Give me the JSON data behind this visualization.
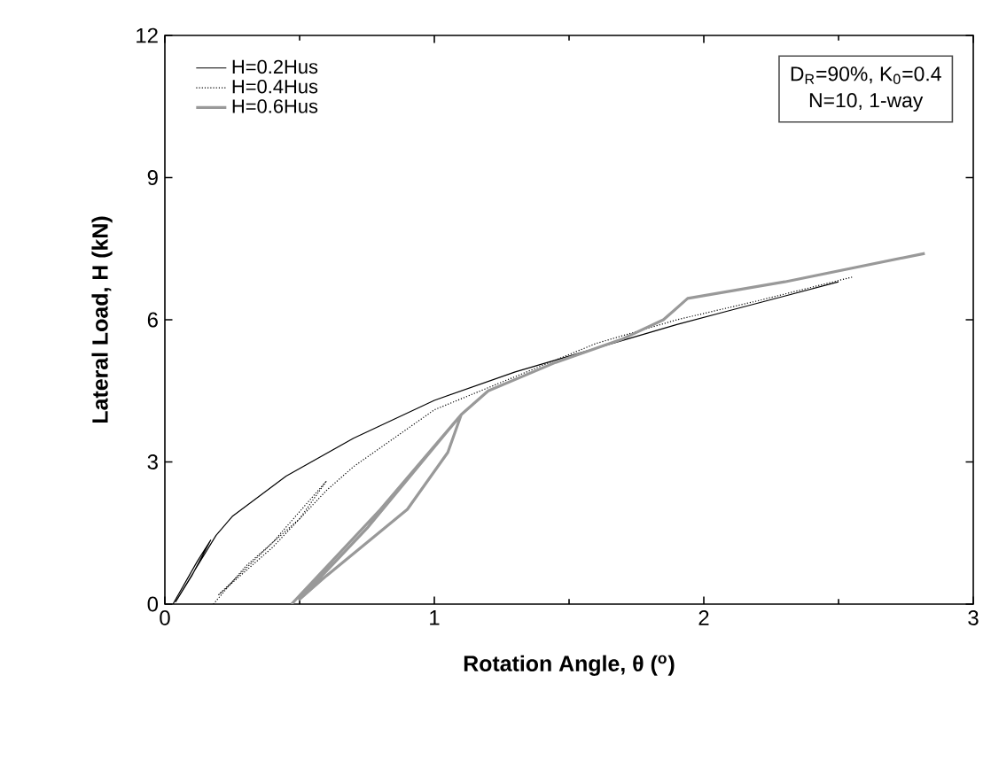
{
  "chart_data": {
    "type": "line",
    "xlabel": "Rotation Angle, θ ($^{o}$)",
    "ylabel": "Lateral Load, H (kN)",
    "xlim": [
      0,
      3
    ],
    "xticks": [
      0,
      1,
      2,
      3
    ],
    "ylim": [
      0,
      12
    ],
    "yticks": [
      0,
      3,
      6,
      9,
      12
    ],
    "grid": false,
    "legend": "top left",
    "annotations": [
      "D$_{R}$=90%, K$_{0}$=0.4",
      "N=10, 1-way"
    ],
    "series": [
      {
        "name": "H=0.2Hus",
        "color": "#000000",
        "line_style": "solid",
        "x": [
          0.03,
          0.12,
          0.17,
          0.1,
          0.04,
          0.12,
          0.19,
          0.25,
          0.45,
          0.7,
          1.0,
          1.3,
          1.6,
          1.9,
          2.1,
          2.3,
          2.5
        ],
        "values": [
          0,
          0.9,
          1.35,
          0.6,
          0.05,
          0.8,
          1.45,
          1.85,
          2.7,
          3.5,
          4.3,
          4.9,
          5.4,
          5.9,
          6.2,
          6.5,
          6.8
        ]
      },
      {
        "name": "H=0.4Hus",
        "color": "#000000",
        "line_style": "dotted",
        "x": [
          0.18,
          0.3,
          0.5,
          0.6,
          0.4,
          0.2,
          0.4,
          0.6,
          0.7,
          1.0,
          1.3,
          1.6,
          1.9,
          2.2,
          2.55
        ],
        "values": [
          0,
          0.8,
          1.8,
          2.6,
          1.3,
          0.2,
          1.2,
          2.4,
          2.9,
          4.1,
          4.8,
          5.5,
          6.0,
          6.4,
          6.9
        ]
      },
      {
        "name": "H=0.6Hus",
        "color": "#999999",
        "line_style": "solid",
        "x": [
          0.47,
          0.8,
          1.1,
          1.05,
          0.9,
          0.6,
          0.5,
          0.75,
          1.1,
          1.2,
          1.45,
          1.7,
          1.85,
          1.94,
          2.3,
          2.82
        ],
        "values": [
          0,
          2.0,
          4.0,
          3.2,
          2.0,
          0.6,
          0.1,
          1.6,
          4.0,
          4.5,
          5.1,
          5.6,
          6.0,
          6.45,
          6.8,
          7.4
        ]
      }
    ]
  }
}
